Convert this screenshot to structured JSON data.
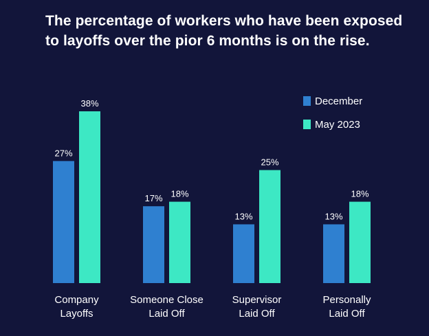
{
  "title_lines": [
    "The percentage of workers who have been exposed",
    "to layoffs over the pior 6 months is on the rise."
  ],
  "chart_data": {
    "type": "bar",
    "title": "The percentage of workers who have been exposed to layoffs over the pior 6 months is on the rise.",
    "categories": [
      [
        "Company",
        "Layoffs"
      ],
      [
        "Someone Close",
        "Laid Off"
      ],
      [
        "Supervisor",
        "Laid Off"
      ],
      [
        "Personally",
        "Laid Off"
      ]
    ],
    "series": [
      {
        "name": "December",
        "color": "#2f80d0",
        "values": [
          27,
          17,
          13,
          13
        ],
        "labels": [
          "27%",
          "17%",
          "13%",
          "13%"
        ]
      },
      {
        "name": "May 2023",
        "color": "#3de8c4",
        "values": [
          38,
          18,
          25,
          18
        ],
        "labels": [
          "38%",
          "18%",
          "25%",
          "18%"
        ]
      }
    ],
    "ylim": [
      0,
      38
    ],
    "legend_position": "top-right",
    "grid": false
  }
}
